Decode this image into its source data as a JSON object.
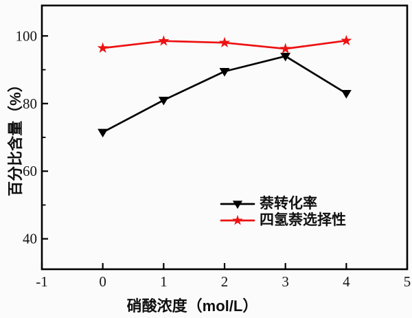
{
  "chart_data": {
    "type": "line",
    "title": "",
    "xlabel": "硝酸浓度（mol/L）",
    "ylabel": "百分比含量（%）",
    "x": [
      0,
      1,
      2,
      3,
      4
    ],
    "series": [
      {
        "name": "萘转化率",
        "color": "#000000",
        "marker": "triangle-down",
        "values": [
          71.5,
          81,
          89.5,
          94,
          83
        ]
      },
      {
        "name": "四氢萘选择性",
        "color": "#ee1111",
        "marker": "star",
        "values": [
          96.4,
          98.5,
          98,
          96.2,
          98.6
        ]
      }
    ],
    "xlim": [
      -1,
      5
    ],
    "ylim": [
      31,
      109
    ],
    "x_ticks": [
      -1,
      0,
      1,
      2,
      3,
      4,
      5
    ],
    "y_ticks_major": [
      40,
      60,
      80,
      100
    ],
    "y_ticks_minor": [
      50,
      70,
      90
    ],
    "grid": false,
    "legend_position": "inside-center-right",
    "frame": "full-box",
    "background_color": "#fbfbfb",
    "axis_color": "#000000"
  }
}
